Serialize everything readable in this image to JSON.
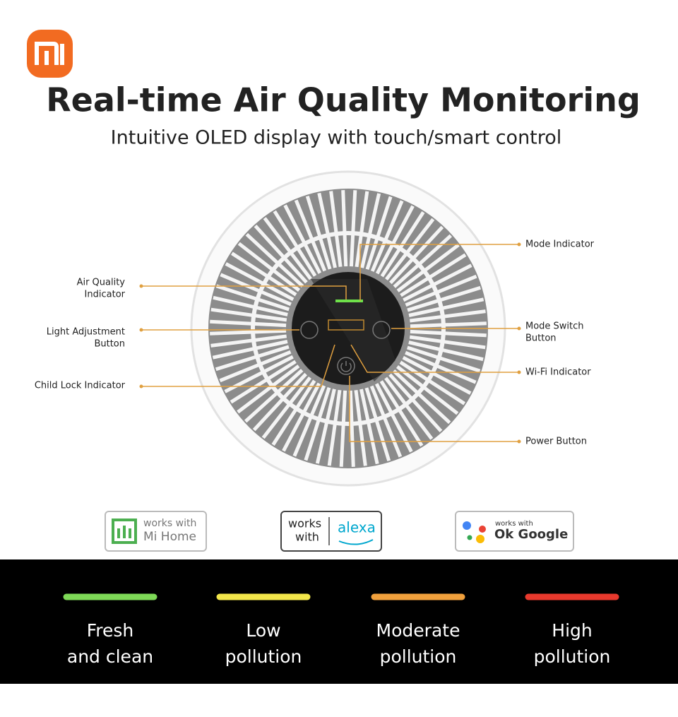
{
  "header": {
    "title": "Real-time Air Quality Monitoring",
    "subtitle": "Intuitive OLED display with touch/smart control"
  },
  "callouts": [
    {
      "lines": [
        "Air Quality",
        "Indicator"
      ]
    },
    {
      "lines": [
        "Light Adjustment",
        "Button"
      ]
    },
    {
      "lines": [
        "Child Lock Indicator"
      ]
    },
    {
      "lines": [
        "Mode Indicator"
      ]
    },
    {
      "lines": [
        "Mode Switch",
        "Button"
      ]
    },
    {
      "lines": [
        "Wi-Fi Indicator"
      ]
    },
    {
      "lines": [
        "Power Button"
      ]
    }
  ],
  "badges": [
    {
      "lines": [
        "works with",
        "Mi Home"
      ]
    },
    {
      "lines": [
        "works",
        "with"
      ],
      "brand": "alexa"
    },
    {
      "lines": [
        "works with"
      ],
      "brand": "Ok Google"
    }
  ],
  "legend": [
    {
      "color": "#7ed957",
      "lines": [
        "Fresh",
        "and clean"
      ]
    },
    {
      "color": "#f2e64a",
      "lines": [
        "Low",
        "pollution"
      ]
    },
    {
      "color": "#f0a03c",
      "lines": [
        "Moderate",
        "pollution"
      ]
    },
    {
      "color": "#e8392d",
      "lines": [
        "High",
        "pollution"
      ]
    }
  ]
}
